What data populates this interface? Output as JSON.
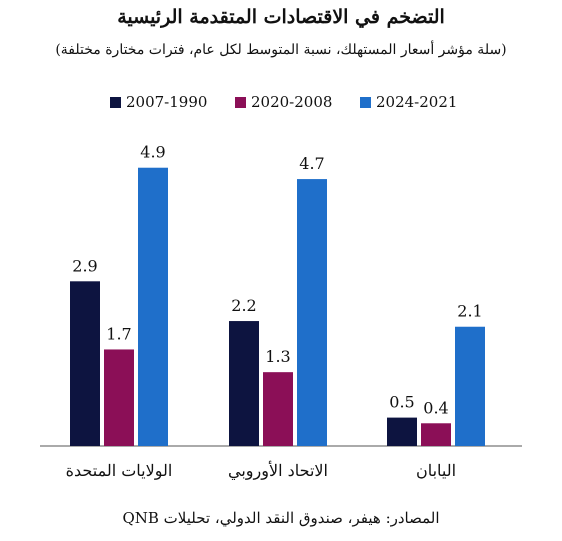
{
  "chart_data": {
    "type": "bar",
    "title": "التضخم في الاقتصادات المتقدمة الرئيسية",
    "subtitle": "(سلة مؤشر أسعار المستهلك، نسبة المتوسط لكل عام، فترات مختارة مختلفة)",
    "categories": [
      "الولايات المتحدة",
      "الاتحاد الأوروبي",
      "اليابان"
    ],
    "series": [
      {
        "name": "1990-2007",
        "color": "#0d1440",
        "values": [
          2.9,
          2.2,
          0.5
        ]
      },
      {
        "name": "2008-2020",
        "color": "#8b0f57",
        "values": [
          1.7,
          1.3,
          0.4
        ]
      },
      {
        "name": "2021-2024",
        "color": "#1f6fca",
        "values": [
          4.9,
          4.7,
          2.1
        ]
      }
    ],
    "legend_labels": [
      "2007-1990",
      "2020-2008",
      "2024-2021"
    ],
    "value_labels": [
      [
        "2.9",
        "1.7",
        "4.9"
      ],
      [
        "2.2",
        "1.3",
        "4.7"
      ],
      [
        "0.5",
        "0.4",
        "2.1"
      ]
    ],
    "ylim": [
      0,
      5.3
    ],
    "grid": false,
    "legend_position": "top",
    "source": "المصادر: هيفر، صندوق النقد الدولي، تحليلات QNB"
  }
}
